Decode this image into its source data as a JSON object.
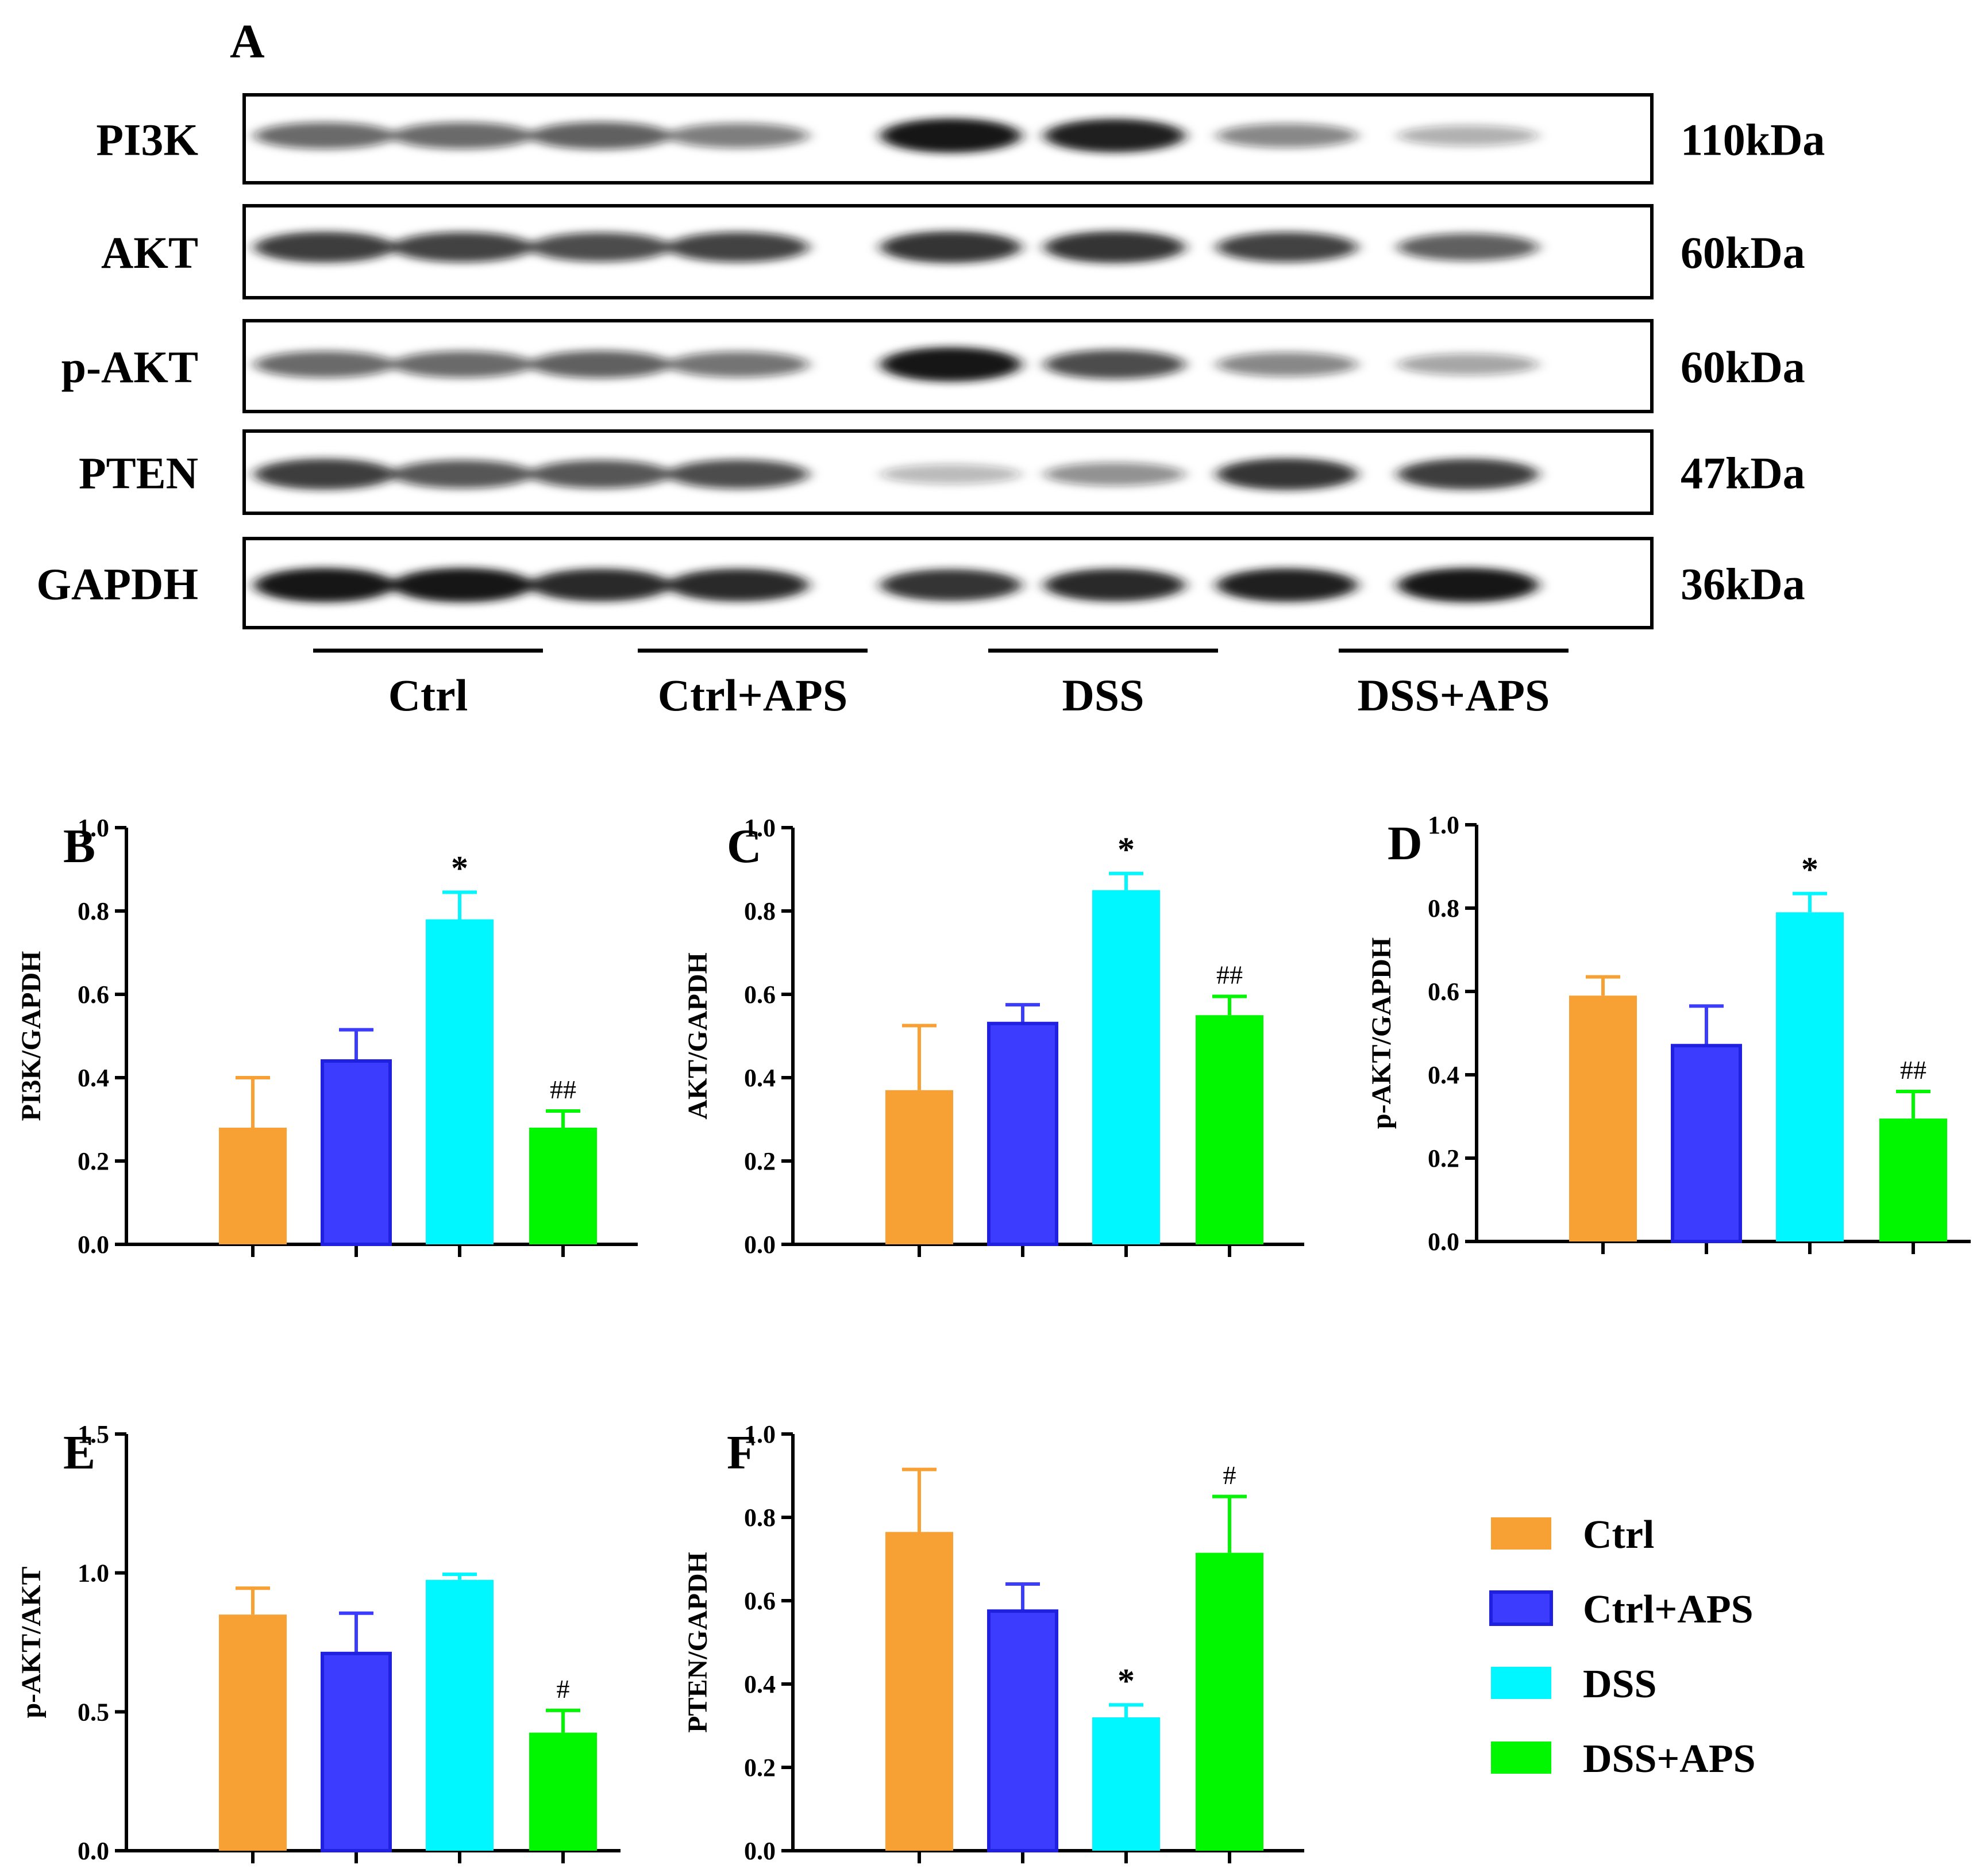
{
  "colors": {
    "Ctrl": "#F7A033",
    "Ctrl+APS": "#3C3CFF",
    "DSS": "#00F7FF",
    "DSS+APS": "#00F700",
    "blot_band": "#141414",
    "frame": "#000000"
  },
  "blot": {
    "panel_label": "A",
    "rows": [
      {
        "protein": "PI3K",
        "mw": "110kDa",
        "intensities": [
          0.55,
          0.55,
          0.6,
          0.45,
          1.0,
          0.95,
          0.4,
          0.2
        ]
      },
      {
        "protein": "AKT",
        "mw": "60kDa",
        "intensities": [
          0.8,
          0.75,
          0.7,
          0.75,
          0.85,
          0.85,
          0.75,
          0.6
        ]
      },
      {
        "protein": "p-AKT",
        "mw": "60kDa",
        "intensities": [
          0.55,
          0.55,
          0.6,
          0.5,
          1.0,
          0.7,
          0.4,
          0.25
        ]
      },
      {
        "protein": "PTEN",
        "mw": "47kDa",
        "intensities": [
          0.8,
          0.65,
          0.65,
          0.7,
          0.15,
          0.35,
          0.85,
          0.8
        ]
      },
      {
        "protein": "GAPDH",
        "mw": "36kDa",
        "intensities": [
          1.0,
          1.0,
          0.9,
          0.9,
          0.85,
          0.9,
          0.95,
          1.0
        ]
      }
    ],
    "groups": [
      "Ctrl",
      "Ctrl+APS",
      "DSS",
      "DSS+APS"
    ]
  },
  "legend": {
    "items": [
      "Ctrl",
      "Ctrl+APS",
      "DSS",
      "DSS+APS"
    ]
  },
  "chart_data": [
    {
      "panel": "B",
      "type": "bar",
      "ylabel": "PI3K/GAPDH",
      "categories": [
        "Ctrl",
        "Ctrl+APS",
        "DSS",
        "DSS+APS"
      ],
      "values": [
        0.28,
        0.44,
        0.78,
        0.28
      ],
      "errors": [
        0.12,
        0.075,
        0.065,
        0.04
      ],
      "ylim": [
        0,
        1.0
      ],
      "yticks": [
        "0.0",
        "0.2",
        "0.4",
        "0.6",
        "0.8",
        "1.0"
      ],
      "annotations": [
        "",
        "",
        "*",
        "##"
      ]
    },
    {
      "panel": "C",
      "type": "bar",
      "ylabel": "AKT/GAPDH",
      "categories": [
        "Ctrl",
        "Ctrl+APS",
        "DSS",
        "DSS+APS"
      ],
      "values": [
        0.37,
        0.53,
        0.85,
        0.55
      ],
      "errors": [
        0.155,
        0.045,
        0.04,
        0.045
      ],
      "ylim": [
        0,
        1.0
      ],
      "yticks": [
        "0.0",
        "0.2",
        "0.4",
        "0.6",
        "0.8",
        "1.0"
      ],
      "annotations": [
        "",
        "",
        "*",
        "##"
      ]
    },
    {
      "panel": "D",
      "type": "bar",
      "ylabel": "p-AKT/GAPDH",
      "categories": [
        "Ctrl",
        "Ctrl+APS",
        "DSS",
        "DSS+APS"
      ],
      "values": [
        0.59,
        0.47,
        0.79,
        0.295
      ],
      "errors": [
        0.045,
        0.095,
        0.045,
        0.065
      ],
      "ylim": [
        0,
        1.0
      ],
      "yticks": [
        "0.0",
        "0.2",
        "0.4",
        "0.6",
        "0.8",
        "1.0"
      ],
      "annotations": [
        "",
        "",
        "*",
        "##"
      ]
    },
    {
      "panel": "E",
      "type": "bar",
      "ylabel": "p-AKT/AKT",
      "categories": [
        "Ctrl",
        "Ctrl+APS",
        "DSS",
        "DSS+APS"
      ],
      "values": [
        0.85,
        0.71,
        0.975,
        0.425
      ],
      "errors": [
        0.095,
        0.145,
        0.02,
        0.08
      ],
      "ylim": [
        0,
        1.5
      ],
      "yticks": [
        "0.0",
        "0.5",
        "1.0",
        "1.5"
      ],
      "annotations": [
        "",
        "",
        "",
        "#"
      ]
    },
    {
      "panel": "F",
      "type": "bar",
      "ylabel": "PTEN/GAPDH",
      "categories": [
        "Ctrl",
        "Ctrl+APS",
        "DSS",
        "DSS+APS"
      ],
      "values": [
        0.765,
        0.575,
        0.32,
        0.715
      ],
      "errors": [
        0.15,
        0.065,
        0.03,
        0.135
      ],
      "ylim": [
        0,
        1.0
      ],
      "yticks": [
        "0.0",
        "0.2",
        "0.4",
        "0.6",
        "0.8",
        "1.0"
      ],
      "annotations": [
        "",
        "",
        "*",
        "#"
      ]
    }
  ]
}
